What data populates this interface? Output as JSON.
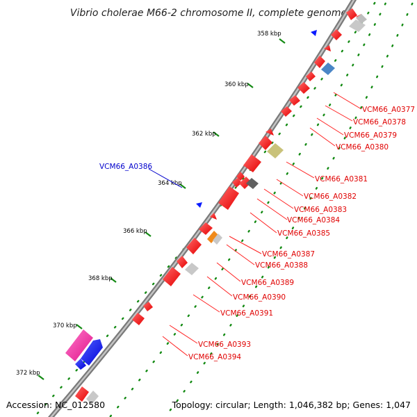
{
  "title": "Vibrio cholerae M66-2 chromosome II, complete genome",
  "accession": "Accession: NC_012580",
  "summary": "Topology: circular; Length: 1,046,382 bp; Genes: 1,047",
  "scale_labels": [
    "358 kbp",
    "360 kbp",
    "362 kbp",
    "364 kbp",
    "366 kbp",
    "368 kbp",
    "370 kbp",
    "372 kbp"
  ],
  "gene_labels_right": [
    "VCM66_A0377",
    "VCM66_A0378",
    "VCM66_A0379",
    "VCM66_A0380",
    "VCM66_A0381",
    "VCM66_A0382",
    "VCM66_A0383",
    "VCM66_A0384",
    "VCM66_A0385",
    "VCM66_A0387",
    "VCM66_A0388",
    "VCM66_A0389",
    "VCM66_A0390",
    "VCM66_A0391",
    "VCM66_A0393",
    "VCM66_A0394"
  ],
  "gene_label_left": "VCM66_A0386",
  "colors": {
    "backbone": "#8c8c8c",
    "gene_red": "#ff1a1a",
    "gene_blue": "#0a1aff",
    "gene_pink": "#ff2fa0",
    "gene_olive": "#c9c27a",
    "gene_gray": "#c8c8c8",
    "gene_dark": "#606060",
    "gene_steel": "#4a86c6",
    "gene_orange": "#f08a1a",
    "tick_green": "#138a13",
    "label_red": "#e00000",
    "label_blue": "#0000cc"
  }
}
